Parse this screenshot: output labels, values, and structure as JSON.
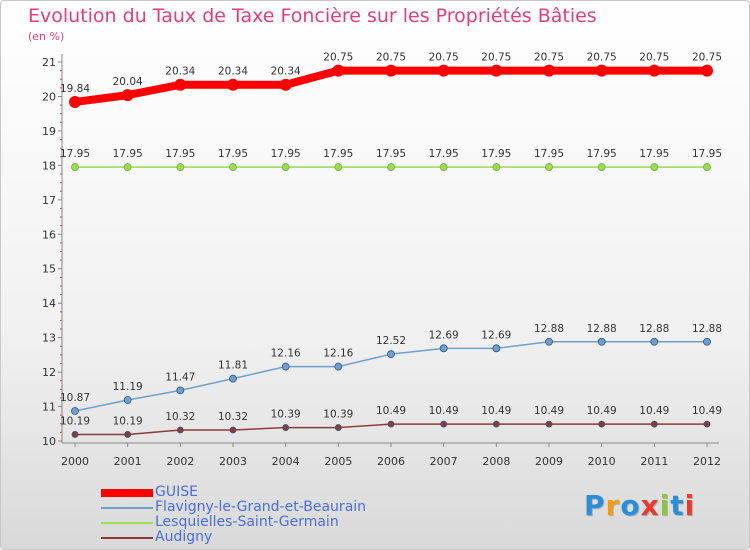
{
  "title": "Evolution du Taux de Taxe Foncière sur les Propriétés Bâties",
  "subtitle": "(en %)",
  "logo": {
    "letters": [
      "P",
      "r",
      "o",
      "x",
      "i",
      "t",
      "i"
    ],
    "colors": [
      "#2a8fd8",
      "#f29a1a",
      "#2a8fd8",
      "#e83a2f",
      "#8cc63f",
      "#2a8fd8",
      "#e83a2f"
    ]
  },
  "chart_data": {
    "type": "line",
    "title": "Evolution du Taux de Taxe Foncière sur les Propriétés Bâties",
    "ylabel": "(en %)",
    "xlabel": "",
    "x": [
      "2000",
      "2001",
      "2002",
      "2003",
      "2004",
      "2005",
      "2006",
      "2007",
      "2008",
      "2009",
      "2010",
      "2011",
      "2012"
    ],
    "yticks": [
      "10",
      "11",
      "12",
      "13",
      "14",
      "15",
      "16",
      "17",
      "18",
      "19",
      "20",
      "21"
    ],
    "ylim": [
      10,
      21
    ],
    "grid": false,
    "legend_position": "bottom-left",
    "series": [
      {
        "name": "GUISE",
        "color": "#ff0000",
        "values": [
          19.84,
          20.04,
          20.34,
          20.34,
          20.34,
          20.75,
          20.75,
          20.75,
          20.75,
          20.75,
          20.75,
          20.75,
          20.75
        ],
        "labels": [
          "19.84",
          "20.04",
          "20.34",
          "20.34",
          "20.34",
          "20.75",
          "20.75",
          "20.75",
          "20.75",
          "20.75",
          "20.75",
          "20.75",
          "20.75"
        ]
      },
      {
        "name": "Flavigny-le-Grand-et-Beaurain",
        "color": "#6e9fcf",
        "values": [
          10.87,
          11.19,
          11.47,
          11.81,
          12.16,
          12.16,
          12.52,
          12.69,
          12.69,
          12.88,
          12.88,
          12.88,
          12.88
        ],
        "labels": [
          "10.87",
          "11.19",
          "11.47",
          "11.81",
          "12.16",
          "12.16",
          "12.52",
          "12.69",
          "12.69",
          "12.88",
          "12.88",
          "12.88",
          "12.88"
        ]
      },
      {
        "name": "Lesquielles-Saint-Germain",
        "color": "#99dd55",
        "values": [
          17.95,
          17.95,
          17.95,
          17.95,
          17.95,
          17.95,
          17.95,
          17.95,
          17.95,
          17.95,
          17.95,
          17.95,
          17.95
        ],
        "labels": [
          "17.95",
          "17.95",
          "17.95",
          "17.95",
          "17.95",
          "17.95",
          "17.95",
          "17.95",
          "17.95",
          "17.95",
          "17.95",
          "17.95",
          "17.95"
        ]
      },
      {
        "name": "Audigny",
        "color": "#8a3a3a",
        "values": [
          10.19,
          10.19,
          10.32,
          10.32,
          10.39,
          10.39,
          10.49,
          10.49,
          10.49,
          10.49,
          10.49,
          10.49,
          10.49
        ],
        "labels": [
          "10.19",
          "10.19",
          "10.32",
          "10.32",
          "10.39",
          "10.39",
          "10.49",
          "10.49",
          "10.49",
          "10.49",
          "10.49",
          "10.49",
          "10.49"
        ]
      }
    ]
  }
}
